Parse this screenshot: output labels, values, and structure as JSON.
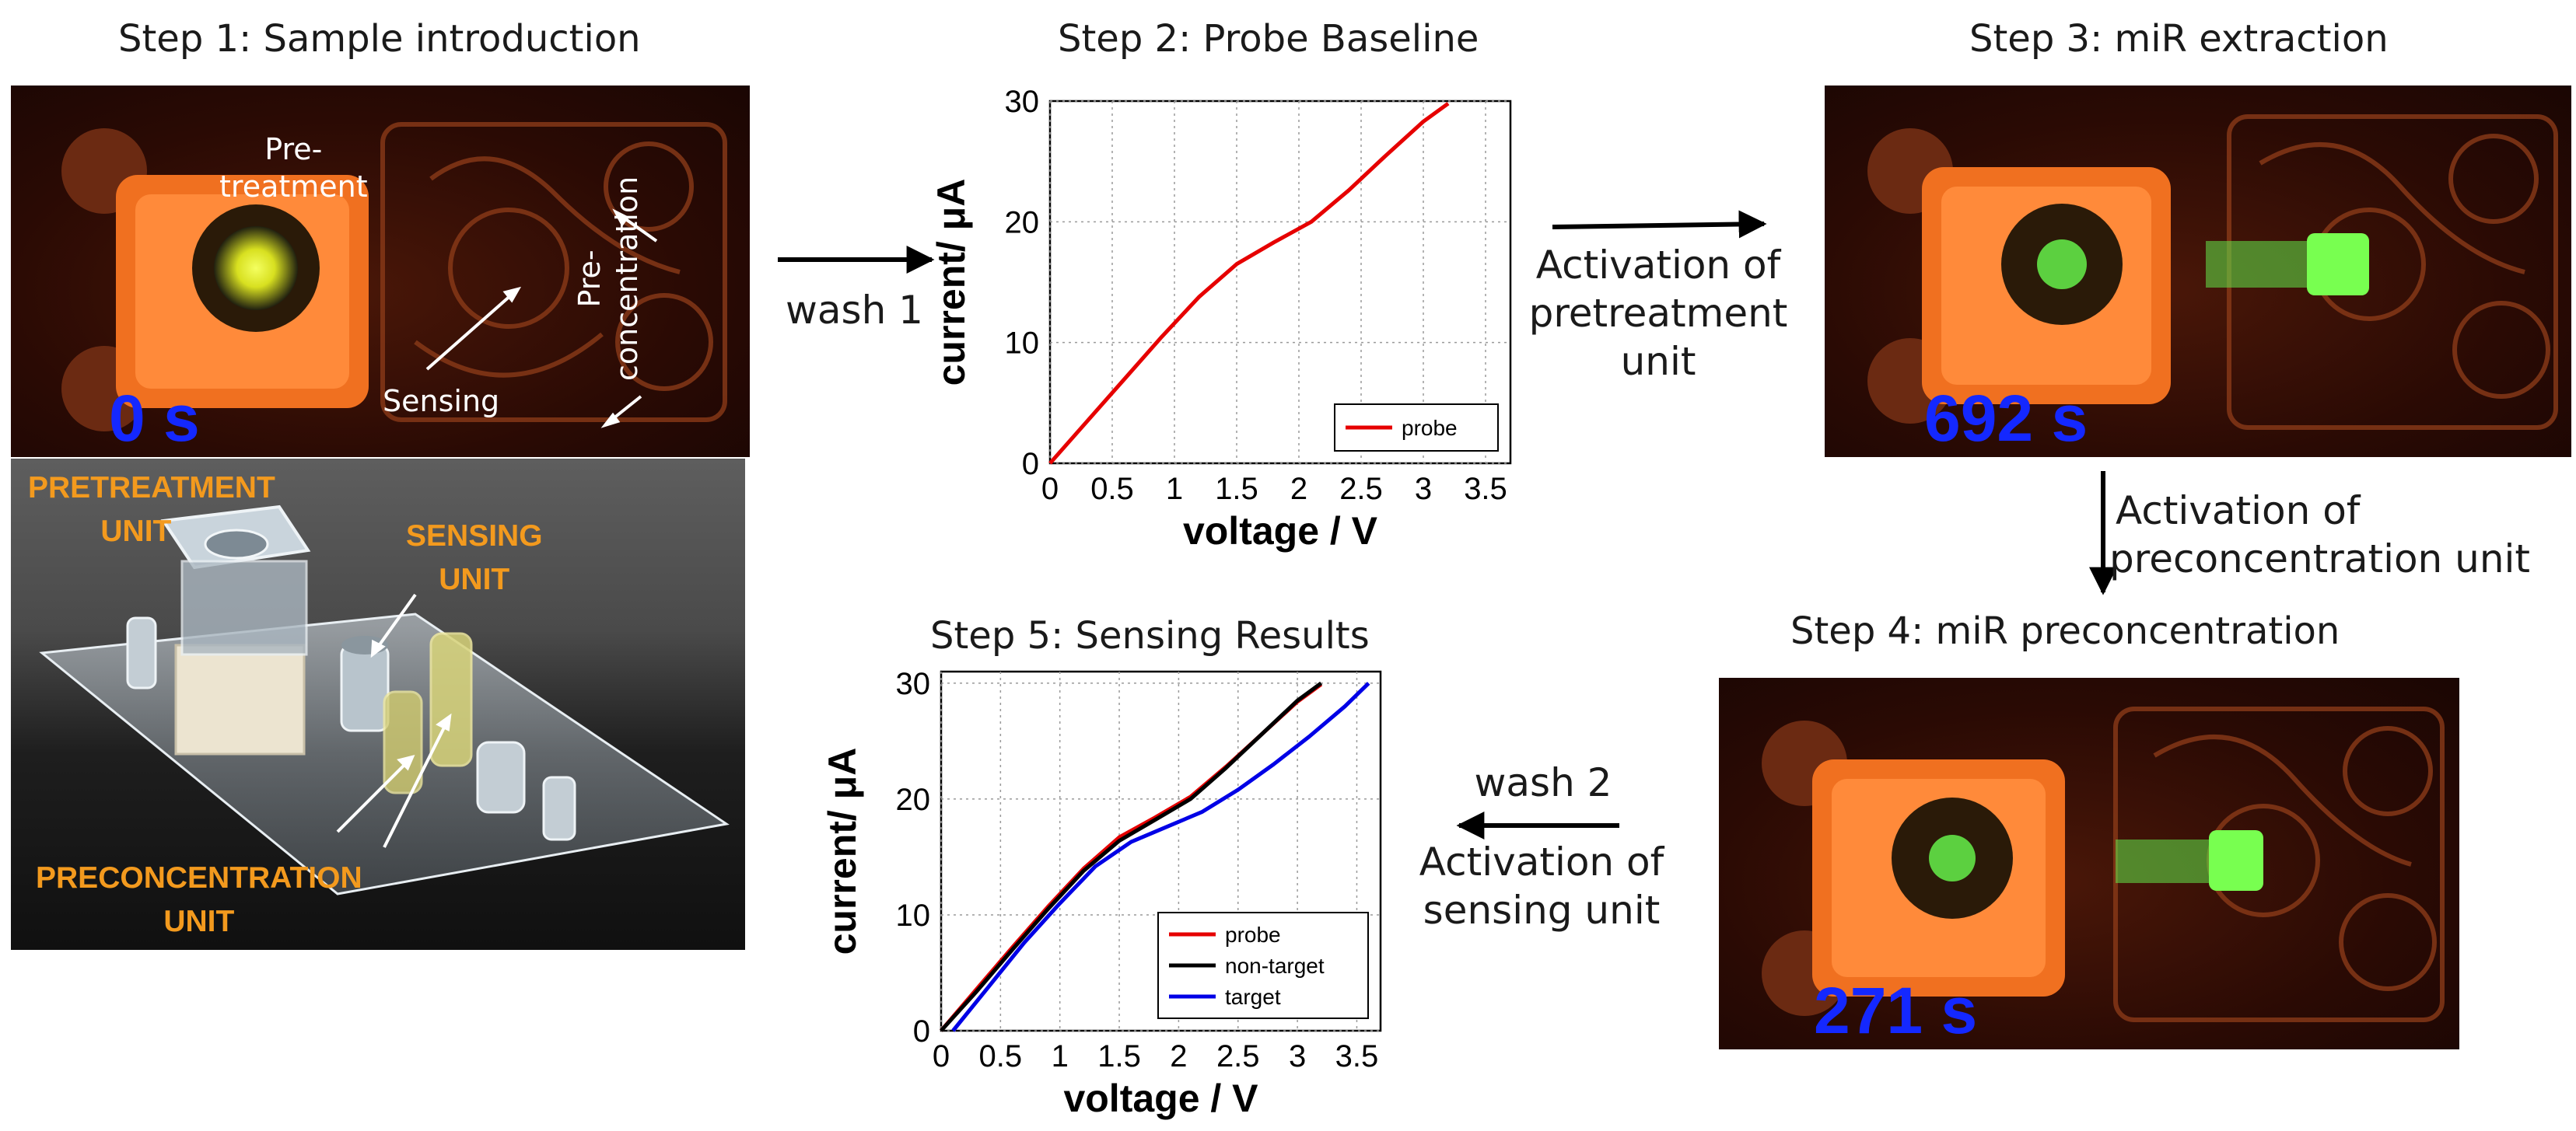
{
  "steps": {
    "step1": "Step 1: Sample introduction",
    "step2": "Step 2: Probe Baseline",
    "step3": "Step 3: miR extraction",
    "step4": "Step 4: miR preconcentration",
    "step5": "Step 5: Sensing Results"
  },
  "flow": {
    "wash1": "wash 1",
    "activation_pretreatment": [
      "Activation of",
      "pretreatment",
      "unit"
    ],
    "activation_preconcentration": [
      "Activation of",
      "preconcentration unit"
    ],
    "wash2": "wash 2",
    "activation_sensing": [
      "Activation of",
      "sensing unit"
    ]
  },
  "photo1": {
    "time": "0 s",
    "pretreatment": [
      "Pre-",
      "treatment"
    ],
    "sensing": "Sensing",
    "preconcentration": [
      "Pre-",
      "concentration"
    ]
  },
  "photo_device": {
    "pretreatment_unit": [
      "PRETREATMENT",
      "UNIT"
    ],
    "sensing_unit": [
      "SENSING",
      "UNIT"
    ],
    "preconcentration_unit": [
      "PRECONCENTRATION",
      "UNIT"
    ]
  },
  "photo3": {
    "time": "692 s"
  },
  "photo4": {
    "time": "271 s"
  },
  "colors": {
    "probe": "#e60000",
    "non_target": "#000000",
    "target": "#0000e6",
    "time_label": "#1428ff",
    "device_label": "#f39a1e"
  },
  "chart_data": [
    {
      "type": "line",
      "title": "Step 2: Probe Baseline",
      "xlabel": "voltage / V",
      "ylabel": "current/ μA",
      "xlim": [
        0,
        3.7
      ],
      "ylim": [
        0,
        30
      ],
      "xticks": [
        "0",
        "0.5",
        "1",
        "1.5",
        "2",
        "2.5",
        "3",
        "3.5"
      ],
      "yticks": [
        "0",
        "10",
        "20",
        "30"
      ],
      "grid": true,
      "legend": "bottom-right",
      "series": [
        {
          "name": "probe",
          "color": "#e60000",
          "x": [
            0,
            0.3,
            0.6,
            0.9,
            1.2,
            1.5,
            1.8,
            2.1,
            2.4,
            2.7,
            3.0,
            3.2
          ],
          "y": [
            0,
            3.5,
            7.0,
            10.5,
            13.8,
            16.5,
            18.3,
            20.0,
            22.6,
            25.5,
            28.3,
            29.8
          ]
        }
      ]
    },
    {
      "type": "line",
      "title": "Step 5: Sensing Results",
      "xlabel": "voltage / V",
      "ylabel": "current/ μA",
      "xlim": [
        0,
        3.7
      ],
      "ylim": [
        0,
        31
      ],
      "xticks": [
        "0",
        "0.5",
        "1",
        "1.5",
        "2",
        "2.5",
        "3",
        "3.5"
      ],
      "yticks": [
        "0",
        "10",
        "20",
        "30"
      ],
      "grid": true,
      "legend": "bottom-right",
      "series": [
        {
          "name": "probe",
          "color": "#e60000",
          "x": [
            0,
            0.3,
            0.6,
            0.9,
            1.2,
            1.5,
            1.8,
            2.1,
            2.4,
            2.7,
            3.0,
            3.2
          ],
          "y": [
            0,
            3.6,
            7.2,
            10.7,
            14.0,
            16.7,
            18.4,
            20.2,
            22.8,
            25.6,
            28.4,
            29.9
          ]
        },
        {
          "name": "non-target",
          "color": "#000000",
          "x": [
            0,
            0.3,
            0.6,
            0.9,
            1.2,
            1.5,
            1.8,
            2.1,
            2.4,
            2.7,
            3.0,
            3.2
          ],
          "y": [
            0,
            3.4,
            7.0,
            10.5,
            13.8,
            16.4,
            18.2,
            20.0,
            22.7,
            25.6,
            28.5,
            30.0
          ]
        },
        {
          "name": "target",
          "color": "#0000e6",
          "x": [
            0.1,
            0.4,
            0.7,
            1.0,
            1.3,
            1.6,
            1.9,
            2.2,
            2.5,
            2.8,
            3.1,
            3.4,
            3.6
          ],
          "y": [
            0,
            3.8,
            7.6,
            11.0,
            14.2,
            16.3,
            17.6,
            18.9,
            20.8,
            23.0,
            25.4,
            28.0,
            30.0
          ]
        }
      ]
    }
  ]
}
